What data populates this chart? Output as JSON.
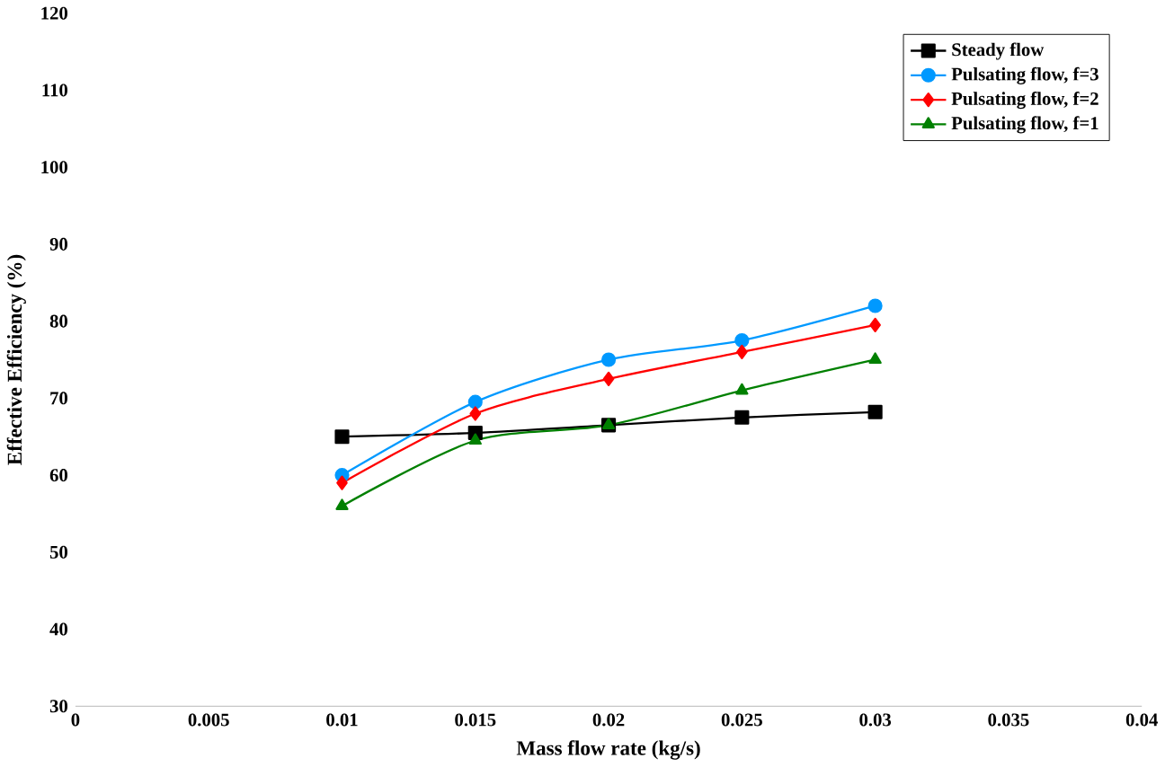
{
  "chart_data": {
    "type": "line",
    "xlabel": "Mass flow rate (kg/s)",
    "ylabel": "Effective Efficiency (%)",
    "x": [
      0.01,
      0.015,
      0.02,
      0.025,
      0.03
    ],
    "xlim": [
      0,
      0.04
    ],
    "xticks": [
      0,
      0.005,
      0.01,
      0.015,
      0.02,
      0.025,
      0.03,
      0.035,
      0.04
    ],
    "ylim": [
      30,
      120
    ],
    "yticks": [
      30,
      40,
      50,
      60,
      70,
      80,
      90,
      100,
      110,
      120
    ],
    "grid": false,
    "legend": "top right",
    "series": [
      {
        "name": "Steady flow",
        "color": "#000000",
        "marker": "square",
        "values": [
          65,
          65.5,
          66.5,
          67.5,
          68.2
        ]
      },
      {
        "name": "Pulsating flow, f=3",
        "color": "#0099ff",
        "marker": "circle",
        "values": [
          60,
          69.5,
          75,
          77.5,
          82
        ]
      },
      {
        "name": "Pulsating flow, f=2",
        "color": "#ff0000",
        "marker": "diamond",
        "values": [
          59,
          68,
          72.5,
          76,
          79.5
        ]
      },
      {
        "name": "Pulsating flow, f=1",
        "color": "#008000",
        "marker": "triangle",
        "values": [
          56,
          64.5,
          66.5,
          71,
          75
        ]
      }
    ]
  }
}
